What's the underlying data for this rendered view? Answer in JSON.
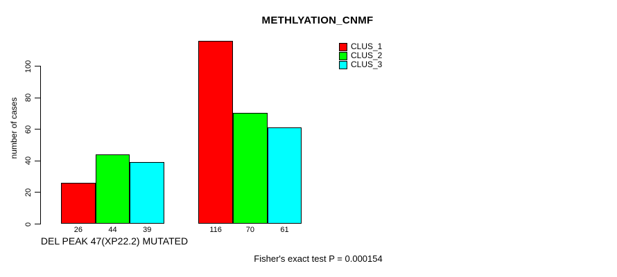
{
  "chart_data": {
    "type": "bar",
    "title": "METHLYATION_CNMF",
    "ylabel": "number of cases",
    "xlabel": "",
    "annotation": "Fisher's exact test P = 0.000154",
    "group_labels": [
      "DEL PEAK 47(XP22.2) MUTATED",
      ""
    ],
    "categories": [
      "DEL PEAK 47(XP22.2) MUTATED",
      ""
    ],
    "series": [
      {
        "name": "CLUS_1",
        "color": "#ff0000",
        "values": [
          26,
          116
        ]
      },
      {
        "name": "CLUS_2",
        "color": "#00ff00",
        "values": [
          44,
          70
        ]
      },
      {
        "name": "CLUS_3",
        "color": "#00ffff",
        "values": [
          39,
          61
        ]
      }
    ],
    "yticks": [
      0,
      20,
      40,
      60,
      80,
      100
    ],
    "ylim": [
      0,
      116
    ],
    "bar_labels_shown": true,
    "legend_position": "top-right",
    "grid": false,
    "bar_border_color": "#000000",
    "background_color": "#ffffff",
    "text_color": "#000000"
  }
}
